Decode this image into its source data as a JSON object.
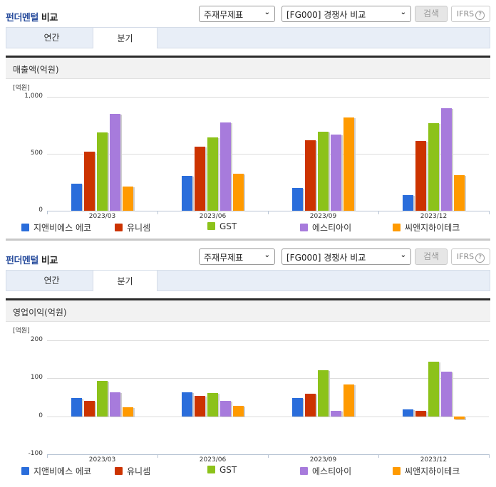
{
  "panels": [
    {
      "header": {
        "title_highlight": "펀더멘털",
        "title_rest": " 비교",
        "select_statement": "주재무제표",
        "select_compare": "[FG000] 경쟁사 비교",
        "search_button": "검색",
        "ifrs_button": "IFRS",
        "help_icon": "?"
      },
      "tabs": [
        {
          "label": "연간",
          "active": false
        },
        {
          "label": "분기",
          "active": true
        }
      ],
      "section_title": "매출액(억원)"
    },
    {
      "header": {
        "title_highlight": "펀더멘털",
        "title_rest": " 비교",
        "select_statement": "주재무제표",
        "select_compare": "[FG000] 경쟁사 비교",
        "search_button": "검색",
        "ifrs_button": "IFRS",
        "help_icon": "?"
      },
      "tabs": [
        {
          "label": "연간",
          "active": false
        },
        {
          "label": "분기",
          "active": true
        }
      ],
      "section_title": "영업이익(억원)"
    }
  ],
  "colors": {
    "지앤비에스 에코": "#2a6ddb",
    "유니셈": "#cc3300",
    "GST": "#8cc21a",
    "에스티아이": "#a77bdc",
    "씨앤지하이테크": "#ff9a00"
  },
  "chart_data": [
    {
      "type": "bar",
      "title": "매출액(억원)",
      "unit_label": "[억원]",
      "xlabel": "",
      "ylabel": "[억원]",
      "ylim": [
        0,
        1000
      ],
      "yticks": [
        "1,000",
        "500",
        "0"
      ],
      "grid": true,
      "legend_position": "bottom",
      "categories": [
        "2023/03",
        "2023/06",
        "2023/09",
        "2023/12"
      ],
      "series": [
        {
          "name": "지앤비에스 에코",
          "color": "#2a6ddb",
          "values": [
            240,
            305,
            200,
            140
          ]
        },
        {
          "name": "유니셈",
          "color": "#cc3300",
          "values": [
            520,
            565,
            620,
            612
          ]
        },
        {
          "name": "GST",
          "color": "#8cc21a",
          "values": [
            690,
            645,
            695,
            770
          ]
        },
        {
          "name": "에스티아이",
          "color": "#a77bdc",
          "values": [
            850,
            775,
            670,
            900
          ]
        },
        {
          "name": "씨앤지하이테크",
          "color": "#ff9a00",
          "values": [
            215,
            325,
            820,
            312
          ]
        }
      ]
    },
    {
      "type": "bar",
      "title": "영업이익(억원)",
      "unit_label": "[억원]",
      "xlabel": "",
      "ylabel": "[억원]",
      "ylim": [
        -100,
        200
      ],
      "yticks": [
        "200",
        "100",
        "0",
        "-100"
      ],
      "grid": true,
      "legend_position": "bottom",
      "categories": [
        "2023/03",
        "2023/06",
        "2023/09",
        "2023/12"
      ],
      "series": [
        {
          "name": "지앤비에스 에코",
          "color": "#2a6ddb",
          "values": [
            49,
            64,
            49,
            19
          ]
        },
        {
          "name": "유니셈",
          "color": "#cc3300",
          "values": [
            41,
            53,
            60,
            14
          ]
        },
        {
          "name": "GST",
          "color": "#8cc21a",
          "values": [
            94,
            62,
            122,
            144
          ]
        },
        {
          "name": "에스티아이",
          "color": "#a77bdc",
          "values": [
            64,
            40,
            14,
            118
          ]
        },
        {
          "name": "씨앤지하이테크",
          "color": "#ff9a00",
          "values": [
            23,
            27,
            83,
            -9
          ]
        }
      ]
    }
  ]
}
